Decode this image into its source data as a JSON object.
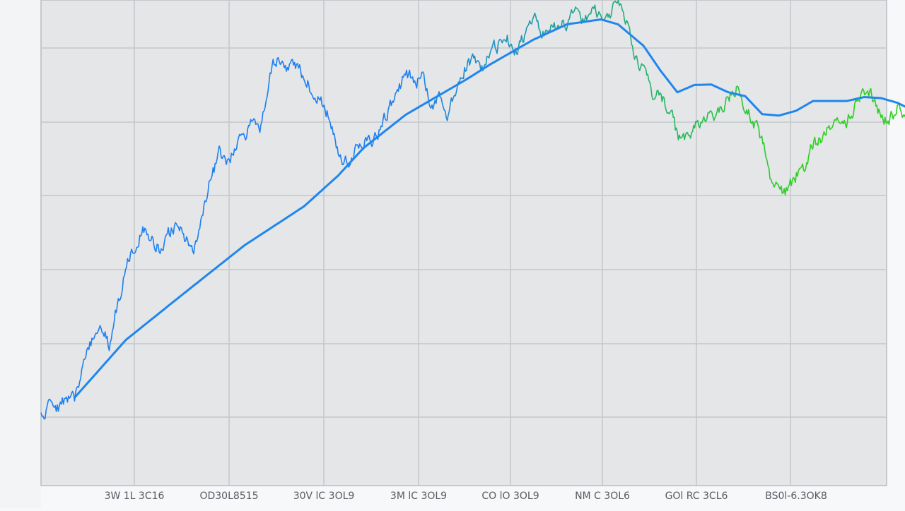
{
  "chart_data": {
    "type": "line",
    "title": "",
    "xlabel": "",
    "ylabel": "",
    "grid": true,
    "legend": "none",
    "xlim": [
      0,
      100
    ],
    "ylim": [
      0,
      100
    ],
    "x_tick_labels": [
      "3W 1L 3C16",
      "OD30L8515",
      "30V lC 3OL9",
      "3M lC 3OL9",
      "CO lO 3OL9",
      "NM C 3OL6",
      "GOl RC 3CL6",
      "BS0l-6.3OK8"
    ],
    "colors": {
      "price_gradient_start": "#1e7ff0",
      "price_gradient_end": "#2cd21c",
      "trend": "#1f86ee",
      "plot_background": "#e4e6e8",
      "grid": "#c4c7cb"
    },
    "series": [
      {
        "anchors": [
          [
            0,
            14.8
          ],
          [
            1,
            16.5
          ],
          [
            2,
            16.2
          ],
          [
            3,
            17.4
          ],
          [
            4,
            18.0
          ],
          [
            5,
            24.0
          ],
          [
            6,
            30.0
          ],
          [
            7,
            34.1
          ],
          [
            8,
            29.0
          ],
          [
            10,
            45.0
          ],
          [
            12,
            52.8
          ],
          [
            13,
            51.0
          ],
          [
            14,
            49.0
          ],
          [
            15,
            52.0
          ],
          [
            16,
            54.0
          ],
          [
            17,
            50.0
          ],
          [
            18,
            49.0
          ],
          [
            20,
            63.0
          ],
          [
            21,
            68.0
          ],
          [
            22,
            66.0
          ],
          [
            23,
            70.0
          ],
          [
            25,
            74.8
          ],
          [
            26,
            74.0
          ],
          [
            27,
            85.6
          ],
          [
            28,
            88.0
          ],
          [
            29,
            86.0
          ],
          [
            30,
            86.8
          ],
          [
            31,
            84.0
          ],
          [
            33,
            79.0
          ],
          [
            34,
            76.0
          ],
          [
            35,
            68.0
          ],
          [
            36,
            66.8
          ],
          [
            37,
            69.0
          ],
          [
            38,
            71.0
          ],
          [
            39,
            70.0
          ],
          [
            40,
            74.0
          ],
          [
            41,
            78.0
          ],
          [
            42,
            80.0
          ],
          [
            43,
            85.2
          ],
          [
            44,
            83.0
          ],
          [
            45,
            84.0
          ],
          [
            46,
            78.0
          ],
          [
            47,
            80.0
          ],
          [
            48,
            76.0
          ],
          [
            49,
            82.0
          ],
          [
            50,
            86.0
          ],
          [
            51,
            88.0
          ],
          [
            52,
            86.0
          ],
          [
            53,
            90.0
          ],
          [
            55,
            91.8
          ],
          [
            56,
            90.0
          ],
          [
            57,
            92.6
          ],
          [
            58,
            97.0
          ],
          [
            59,
            94.0
          ],
          [
            60,
            93.0
          ],
          [
            61,
            96.0
          ],
          [
            62,
            95.0
          ],
          [
            63,
            97.8
          ],
          [
            64,
            96.0
          ],
          [
            65,
            98.0
          ],
          [
            66,
            96.4
          ],
          [
            67,
            97.4
          ],
          [
            68,
            99.4
          ],
          [
            69,
            95.0
          ],
          [
            70,
            89.0
          ],
          [
            71,
            85.0
          ],
          [
            72,
            81.0
          ],
          [
            73,
            80.0
          ],
          [
            74,
            78.0
          ],
          [
            75,
            72.0
          ],
          [
            76,
            71.0
          ],
          [
            77,
            74.0
          ],
          [
            79,
            76.0
          ],
          [
            80,
            78.0
          ],
          [
            81,
            80.0
          ],
          [
            82,
            82.0
          ],
          [
            83,
            78.0
          ],
          [
            84,
            75.0
          ],
          [
            85,
            71.0
          ],
          [
            86,
            63.0
          ],
          [
            87,
            60.0
          ],
          [
            88,
            61.0
          ],
          [
            89,
            64.0
          ],
          [
            90,
            66.0
          ],
          [
            91,
            70.0
          ],
          [
            92,
            72.0
          ],
          [
            93,
            74.0
          ],
          [
            95,
            75.0
          ],
          [
            97,
            82.0
          ],
          [
            98,
            80.0
          ],
          [
            99,
            76.0
          ],
          [
            100,
            75.0
          ],
          [
            101,
            78.0
          ],
          [
            102,
            76.0
          ],
          [
            103,
            79.0
          ],
          [
            104,
            77.8
          ]
        ]
      },
      {
        "anchors": [
          [
            4,
            18.2
          ],
          [
            10,
            30.0
          ],
          [
            17,
            39.8
          ],
          [
            24,
            49.5
          ],
          [
            31,
            57.5
          ],
          [
            35,
            63.8
          ],
          [
            38,
            69.5
          ],
          [
            43,
            76.4
          ],
          [
            50,
            83.5
          ],
          [
            53,
            86.8
          ],
          [
            58,
            91.8
          ],
          [
            62,
            95.0
          ],
          [
            66,
            96.0
          ],
          [
            68,
            95.0
          ],
          [
            71,
            90.6
          ],
          [
            73,
            85.5
          ],
          [
            75,
            81.0
          ],
          [
            77,
            82.5
          ],
          [
            79,
            82.6
          ],
          [
            81,
            81.0
          ],
          [
            83,
            80.2
          ],
          [
            85,
            76.5
          ],
          [
            87,
            76.2
          ],
          [
            89,
            77.2
          ],
          [
            91,
            79.2
          ],
          [
            93,
            79.2
          ],
          [
            95,
            79.2
          ],
          [
            97,
            80.0
          ],
          [
            99,
            79.8
          ],
          [
            101,
            78.8
          ],
          [
            103,
            77.0
          ],
          [
            104,
            77.4
          ]
        ]
      }
    ]
  }
}
